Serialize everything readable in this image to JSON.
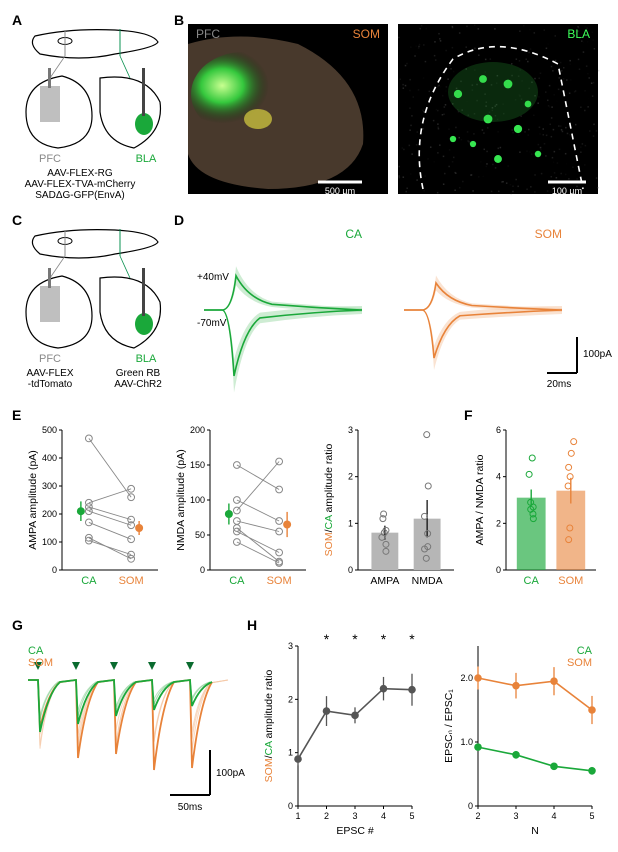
{
  "colors": {
    "green": "#1aa83a",
    "green_light": "#9ed9a7",
    "orange": "#e8833a",
    "orange_light": "#f5c7a5",
    "gray": "#888888",
    "gray_dark": "#555555",
    "black": "#000000",
    "white": "#ffffff"
  },
  "panel_labels": {
    "A": "A",
    "B": "B",
    "C": "C",
    "D": "D",
    "E": "E",
    "F": "F",
    "G": "G",
    "H": "H"
  },
  "A": {
    "pfc_label": "PFC",
    "bla_label": "BLA",
    "virus_lines": [
      "AAV-FLEX-RG",
      "AAV-FLEX-TVA-mCherry",
      "SADΔG-GFP(EnvA)"
    ]
  },
  "B": {
    "left_labels": {
      "PFC": "PFC",
      "SOM": "SOM"
    },
    "right_label": "BLA",
    "scale_left": "500 µm",
    "scale_right": "100 µm"
  },
  "C": {
    "pfc_label": "PFC",
    "bla_label": "BLA",
    "pfc_virus": "AAV-FLEX\n-tdTomato",
    "bla_virus": "Green RB\nAAV-ChR2"
  },
  "D": {
    "ca_label": "CA",
    "som_label": "SOM",
    "v_plus": "+40mV",
    "v_minus": "-70mV",
    "scale_y": "100pA",
    "scale_x": "20ms"
  },
  "E": {
    "ampa": {
      "ylabel": "AMPA amplitude (pA)",
      "xlabels": [
        "CA",
        "SOM"
      ],
      "ylim": [
        0,
        500
      ],
      "yticks": [
        0,
        100,
        200,
        300,
        400,
        500
      ],
      "pairs": [
        [
          470,
          260
        ],
        [
          240,
          290
        ],
        [
          170,
          110
        ],
        [
          225,
          180
        ],
        [
          105,
          55
        ],
        [
          115,
          40
        ],
        [
          210,
          160
        ]
      ],
      "mean_ca": 210,
      "sem_ca": 35,
      "mean_som": 150,
      "sem_som": 25
    },
    "nmda": {
      "ylabel": "NMDA amplitude (pA)",
      "xlabels": [
        "CA",
        "SOM"
      ],
      "ylim": [
        0,
        200
      ],
      "yticks": [
        0,
        50,
        100,
        150,
        200
      ],
      "pairs": [
        [
          85,
          155
        ],
        [
          70,
          55
        ],
        [
          55,
          25
        ],
        [
          100,
          70
        ],
        [
          150,
          115
        ],
        [
          60,
          12
        ],
        [
          40,
          10
        ]
      ],
      "mean_ca": 80,
      "sem_ca": 15,
      "mean_som": 65,
      "sem_som": 18
    },
    "ratio": {
      "ylabel_prefix": "SOM",
      "ylabel_mid": "/",
      "ylabel_suffix": "CA",
      "ylabel_rest": " amplitude ratio",
      "xlabels": [
        "AMPA",
        "NMDA"
      ],
      "ylim": [
        0,
        3
      ],
      "yticks": [
        0,
        1,
        2,
        3
      ],
      "ampa_points": [
        0.55,
        0.7,
        0.4,
        1.2,
        0.85,
        0.8,
        1.1
      ],
      "nmda_points": [
        1.8,
        0.5,
        0.78,
        2.9,
        0.45,
        0.25,
        1.15
      ],
      "ampa_mean": 0.8,
      "ampa_sem": 0.15,
      "nmda_mean": 1.1,
      "nmda_sem": 0.4,
      "bar_color": "#b6b6b6"
    }
  },
  "F": {
    "ylabel": "AMPA / NMDA ratio",
    "xlabels": [
      "CA",
      "SOM"
    ],
    "ylim": [
      0,
      6
    ],
    "yticks": [
      0,
      2,
      4,
      6
    ],
    "ca_points": [
      2.4,
      4.8,
      2.7,
      4.1,
      2.2,
      2.6,
      2.9
    ],
    "som_points": [
      5.5,
      5.0,
      4.0,
      4.4,
      1.8,
      1.3,
      3.6
    ],
    "ca_mean": 3.1,
    "ca_sem": 0.35,
    "som_mean": 3.4,
    "som_sem": 0.55
  },
  "G": {
    "scale_y": "100pA",
    "scale_x": "50ms",
    "ca_label": "CA",
    "som_label": "SOM"
  },
  "H": {
    "left": {
      "xlabel": "EPSC #",
      "ylabel_prefix": "SOM",
      "ylabel_mid": "/",
      "ylabel_suffix": "CA",
      "ylabel_rest": " amplitude ratio",
      "x": [
        1,
        2,
        3,
        4,
        5
      ],
      "y": [
        0.88,
        1.78,
        1.7,
        2.2,
        2.18
      ],
      "sem": [
        0.12,
        0.28,
        0.15,
        0.22,
        0.3
      ],
      "ylim": [
        0,
        3
      ],
      "yticks": [
        0,
        1,
        2,
        3
      ],
      "stars": [
        false,
        true,
        true,
        true,
        true
      ],
      "color": "#555555"
    },
    "right": {
      "xlabel": "N",
      "ylabel": "EPSCₙ / EPSC₁",
      "x": [
        2,
        3,
        4,
        5
      ],
      "ca": {
        "y": [
          0.92,
          0.8,
          0.62,
          0.55
        ],
        "sem": [
          0.05,
          0.06,
          0.05,
          0.06
        ]
      },
      "som": {
        "y": [
          2.0,
          1.88,
          1.95,
          1.5
        ],
        "sem": [
          0.18,
          0.2,
          0.22,
          0.22
        ]
      },
      "ylim": [
        0,
        2.5
      ],
      "yticks": [
        0,
        1.0,
        2.0
      ],
      "ytick_labels": [
        "0",
        "1.0",
        "2.0"
      ],
      "ca_label": "CA",
      "som_label": "SOM"
    }
  }
}
